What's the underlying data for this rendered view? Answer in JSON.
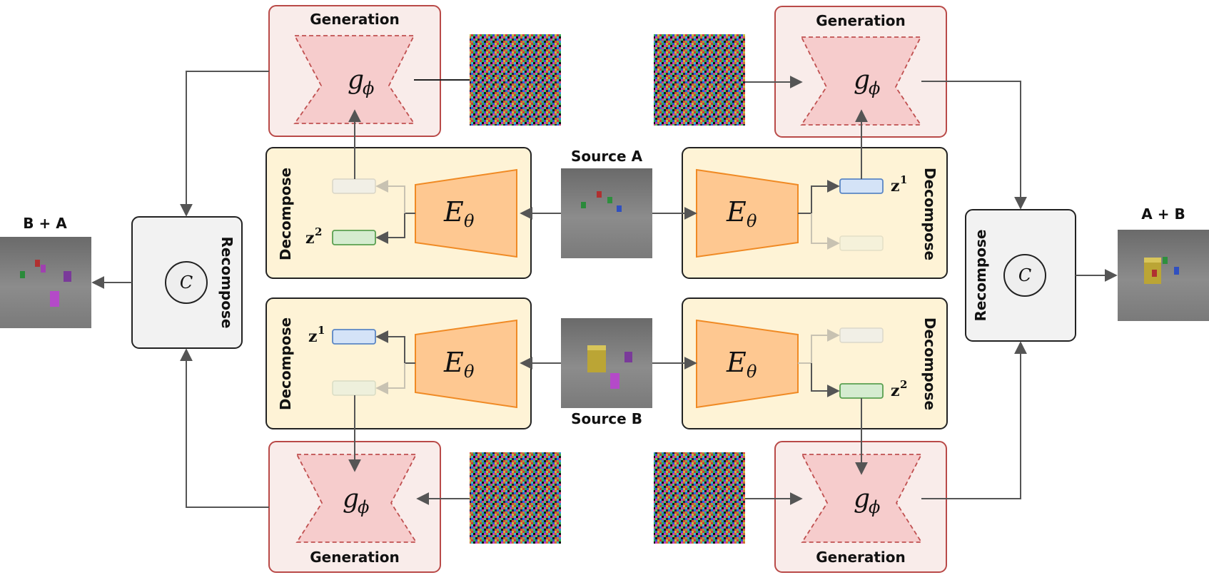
{
  "labels": {
    "generation": "Generation",
    "decompose": "Decompose",
    "recompose": "Recompose",
    "source_a": "Source A",
    "source_b": "Source B",
    "output_left": "B + A",
    "output_right": "A + B"
  },
  "symbols": {
    "generator_base": "g",
    "generator_sub": "ϕ",
    "encoder_base": "E",
    "encoder_sub": "θ",
    "compose": "C",
    "latent_base": "z",
    "latent_1_sup": "1",
    "latent_2_sup": "2"
  },
  "colors": {
    "generation_fill": "#f9ecea",
    "generation_border": "#b94a48",
    "generator_fill": "#f6cccc",
    "decompose_fill": "#fef3d6",
    "encoder_fill": "#fec891",
    "encoder_border": "#f08a24",
    "recompose_fill": "#f2f2f2",
    "latent1_fill": "#d4e3f7",
    "latent1_border": "#5b86c5",
    "latent2_fill": "#d5ecd0",
    "latent2_border": "#5aa050",
    "arrow": "#555555"
  }
}
